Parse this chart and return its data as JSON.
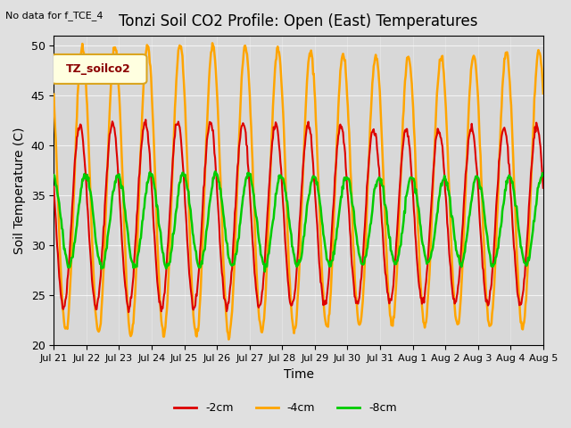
{
  "title": "Tonzi Soil CO2 Profile: Open (East) Temperatures",
  "xlabel": "Time",
  "ylabel": "Soil Temperature (C)",
  "no_data_label": "No data for f_TCE_4",
  "legend_box_label": "TZ_soilco2",
  "ylim": [
    20,
    51
  ],
  "yticks": [
    20,
    25,
    30,
    35,
    40,
    45,
    50
  ],
  "background_color": "#e0e0e0",
  "plot_bg_color": "#d8d8d8",
  "series": [
    {
      "label": "-2cm",
      "color": "#dd0000",
      "linewidth": 1.5
    },
    {
      "label": "-4cm",
      "color": "#ffa500",
      "linewidth": 1.8
    },
    {
      "label": "-8cm",
      "color": "#00cc00",
      "linewidth": 1.8
    }
  ],
  "x_tick_labels": [
    "Jul 21",
    "Jul 22",
    "Jul 23",
    "Jul 24",
    "Jul 25",
    "Jul 26",
    "Jul 27",
    "Jul 28",
    "Jul 29",
    "Jul 30",
    "Jul 31",
    "Aug 1",
    "Aug 2",
    "Aug 3",
    "Aug 4",
    "Aug 5"
  ],
  "num_days": 15,
  "points_per_day": 48
}
